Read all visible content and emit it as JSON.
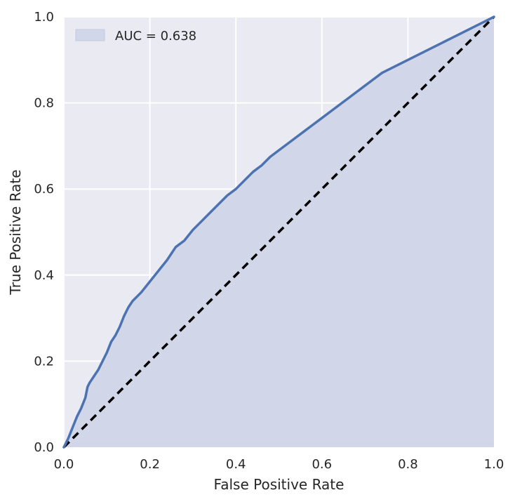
{
  "chart_data": {
    "type": "area",
    "title": "",
    "xlabel": "False Positive Rate",
    "ylabel": "True Positive Rate",
    "xlim": [
      0.0,
      1.0
    ],
    "ylim": [
      0.0,
      1.0
    ],
    "x_ticks": [
      "0.0",
      "0.2",
      "0.4",
      "0.6",
      "0.8",
      "1.0"
    ],
    "y_ticks": [
      "0.0",
      "0.2",
      "0.4",
      "0.6",
      "0.8",
      "1.0"
    ],
    "grid": true,
    "legend_position": "top-left",
    "series": [
      {
        "name": "AUC = 0.638",
        "kind": "roc-curve-filled",
        "color": "#4c72b0",
        "fill_color": "#d1d6e8",
        "x": [
          0.0,
          0.01,
          0.02,
          0.03,
          0.04,
          0.05,
          0.055,
          0.06,
          0.07,
          0.08,
          0.09,
          0.1,
          0.11,
          0.12,
          0.13,
          0.14,
          0.15,
          0.16,
          0.18,
          0.2,
          0.22,
          0.24,
          0.26,
          0.28,
          0.3,
          0.32,
          0.34,
          0.36,
          0.38,
          0.4,
          0.42,
          0.44,
          0.46,
          0.48,
          0.5,
          0.52,
          0.54,
          0.56,
          0.58,
          0.6,
          0.62,
          0.64,
          0.66,
          0.68,
          0.7,
          0.72,
          0.74,
          0.76,
          0.78,
          0.8,
          0.82,
          0.84,
          0.86,
          0.88,
          0.9,
          0.92,
          0.94,
          0.96,
          0.98,
          1.0
        ],
        "y": [
          0.0,
          0.02,
          0.045,
          0.07,
          0.09,
          0.115,
          0.14,
          0.15,
          0.165,
          0.18,
          0.2,
          0.22,
          0.245,
          0.26,
          0.28,
          0.305,
          0.325,
          0.34,
          0.36,
          0.385,
          0.41,
          0.435,
          0.465,
          0.48,
          0.505,
          0.525,
          0.545,
          0.565,
          0.585,
          0.6,
          0.62,
          0.64,
          0.655,
          0.675,
          0.69,
          0.705,
          0.72,
          0.735,
          0.75,
          0.765,
          0.78,
          0.795,
          0.81,
          0.825,
          0.84,
          0.855,
          0.87,
          0.88,
          0.89,
          0.9,
          0.91,
          0.92,
          0.93,
          0.94,
          0.95,
          0.96,
          0.97,
          0.98,
          0.99,
          1.0
        ]
      },
      {
        "name": "",
        "kind": "chance-diagonal",
        "color": "#000000",
        "dashed": true,
        "x": [
          0.0,
          1.0
        ],
        "y": [
          0.0,
          1.0
        ]
      }
    ]
  },
  "colors": {
    "plot_background": "#eaeaf2",
    "grid": "#ffffff",
    "text": "#262626"
  }
}
